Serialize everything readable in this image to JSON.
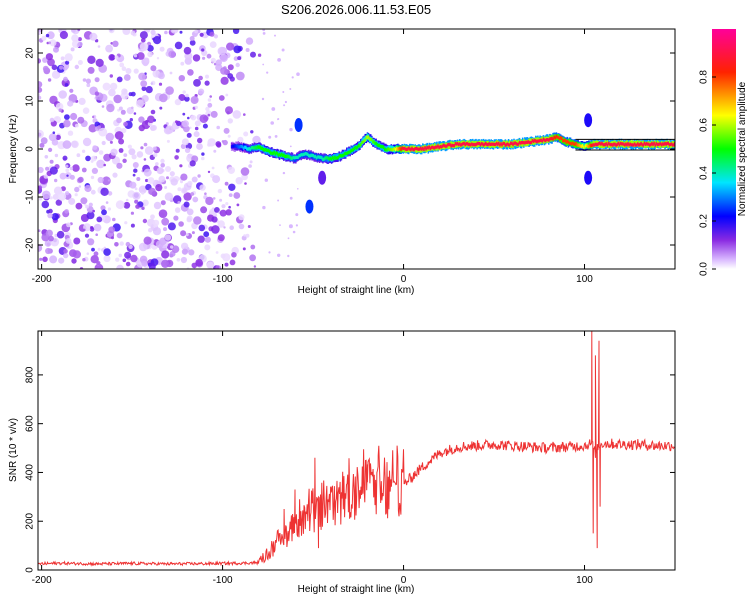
{
  "title": "S206.2026.006.11.53.E05",
  "chart_data": [
    {
      "type": "heatmap",
      "xlabel": "Height of straight line (km)",
      "ylabel": "Frequency (Hz)",
      "xlim": [
        -202,
        150
      ],
      "ylim": [
        -25,
        25
      ],
      "xticks": [
        -200,
        -100,
        0,
        100
      ],
      "yticks": [
        -20,
        -10,
        0,
        10,
        20
      ],
      "colorbar": {
        "label": "Normalized spectral amplitude",
        "range": [
          0,
          1
        ],
        "ticks": [
          "0.0",
          "0.2",
          "0.4",
          "0.6",
          "0.8"
        ],
        "tick_values": [
          0.0,
          0.2,
          0.4,
          0.6,
          0.8
        ],
        "colors": [
          "#ffffff",
          "#8a2be2",
          "#0000ff",
          "#00e5ff",
          "#00ff00",
          "#ffff00",
          "#ff0000",
          "#ff0099"
        ]
      },
      "noise_region": {
        "x": [
          -202,
          -78
        ],
        "y": [
          -25,
          25
        ],
        "amplitude": 0.1
      },
      "ridge": {
        "x": [
          -95,
          -90,
          -85,
          -80,
          -75,
          -70,
          -65,
          -60,
          -55,
          -50,
          -45,
          -40,
          -35,
          -30,
          -25,
          -20,
          -15,
          -10,
          -5,
          0,
          10,
          20,
          30,
          40,
          50,
          60,
          70,
          80,
          85,
          90,
          95,
          100,
          105,
          110,
          120,
          130,
          140,
          150
        ],
        "y": [
          0.5,
          0.5,
          0.0,
          0.5,
          -0.5,
          -1.0,
          -1.5,
          -2.0,
          -1.0,
          -1.5,
          -2.0,
          -2.0,
          -1.5,
          -0.5,
          0.5,
          2.5,
          1.0,
          0.0,
          0.0,
          0.0,
          0.0,
          0.5,
          1.0,
          1.0,
          1.0,
          1.0,
          1.5,
          2.0,
          2.5,
          1.5,
          1.0,
          0.5,
          1.0,
          1.0,
          1.0,
          1.0,
          1.0,
          1.0
        ],
        "amplitude": [
          0.2,
          0.3,
          0.4,
          0.5,
          0.5,
          0.5,
          0.5,
          0.4,
          0.4,
          0.4,
          0.4,
          0.5,
          0.5,
          0.5,
          0.5,
          0.6,
          0.5,
          0.5,
          0.6,
          0.9,
          0.9,
          0.9,
          0.9,
          0.9,
          0.9,
          0.9,
          0.9,
          0.9,
          0.8,
          0.8,
          0.8,
          0.6,
          0.9,
          0.9,
          0.9,
          0.9,
          0.9,
          0.9
        ]
      },
      "blobs": [
        {
          "x": -58,
          "y": 5,
          "amplitude": 0.25
        },
        {
          "x": -52,
          "y": -12,
          "amplitude": 0.25
        },
        {
          "x": -45,
          "y": -6,
          "amplitude": 0.15
        },
        {
          "x": 102,
          "y": -6,
          "amplitude": 0.2
        },
        {
          "x": 102,
          "y": 6,
          "amplitude": 0.2
        }
      ]
    },
    {
      "type": "line",
      "xlabel": "Height of straight line (km)",
      "ylabel": "SNR (10 * v/v)",
      "xlim": [
        -202,
        150
      ],
      "ylim": [
        0,
        980
      ],
      "xticks": [
        -200,
        -100,
        0,
        100
      ],
      "yticks": [
        0,
        200,
        400,
        600,
        800
      ],
      "color": "#ee3333",
      "series": {
        "x": [
          -202,
          -190,
          -170,
          -150,
          -130,
          -110,
          -90,
          -80,
          -75,
          -70,
          -65,
          -60,
          -55,
          -50,
          -45,
          -40,
          -35,
          -30,
          -25,
          -20,
          -15,
          -10,
          -5,
          0,
          10,
          20,
          30,
          40,
          50,
          60,
          70,
          80,
          90,
          100,
          104,
          106,
          107,
          108,
          110,
          120,
          130,
          140,
          150
        ],
        "y": [
          25,
          28,
          25,
          27,
          25,
          26,
          28,
          30,
          60,
          100,
          140,
          170,
          200,
          220,
          240,
          260,
          280,
          300,
          320,
          350,
          330,
          300,
          310,
          350,
          420,
          480,
          505,
          510,
          515,
          510,
          505,
          500,
          505,
          510,
          520,
          480,
          500,
          510,
          520,
          515,
          515,
          510,
          510
        ]
      },
      "spikes": [
        {
          "x": -66,
          "y": 250
        },
        {
          "x": -64,
          "y": 150
        },
        {
          "x": -60,
          "y": 330
        },
        {
          "x": -58,
          "y": 200
        },
        {
          "x": -49,
          "y": 460
        },
        {
          "x": -47,
          "y": 90
        },
        {
          "x": -30,
          "y": 400
        },
        {
          "x": -20,
          "y": 360
        },
        {
          "x": -14,
          "y": 470
        },
        {
          "x": 104,
          "y": 980
        },
        {
          "x": 104.8,
          "y": 150
        },
        {
          "x": 106,
          "y": 880
        },
        {
          "x": 107,
          "y": 90
        },
        {
          "x": 108,
          "y": 940
        },
        {
          "x": 108.6,
          "y": 260
        }
      ]
    }
  ]
}
